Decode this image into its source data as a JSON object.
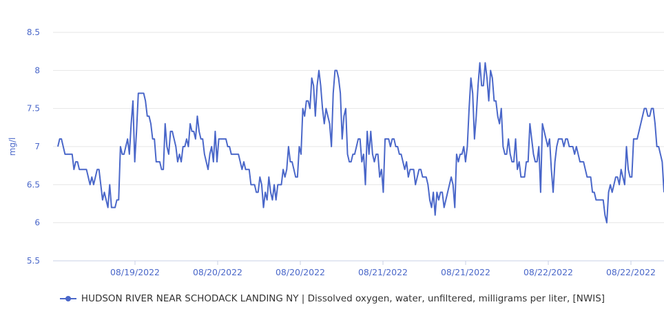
{
  "chart_data": {
    "type": "line",
    "title": "",
    "xlabel": "",
    "ylabel": "mg/l",
    "ylim": [
      5.5,
      8.5
    ],
    "y_ticks": [
      "8.5",
      "8",
      "7.5",
      "7",
      "6.5",
      "6",
      "5.5"
    ],
    "x_tick_labels": [
      "08/19/2022",
      "08/20/2022",
      "08/20/2022",
      "08/21/2022",
      "08/21/2022",
      "08/22/2022",
      "08/22/2022"
    ],
    "grid": true,
    "legend": "bottom",
    "series": [
      {
        "name": "HUDSON RIVER NEAR SCHODACK LANDING NY | Dissolved oxygen, water, unfiltered, milligrams per liter, [NWIS]",
        "color": "#4a67c9",
        "values": [
          7.0,
          7.1,
          7.1,
          7.0,
          6.9,
          6.9,
          6.9,
          6.9,
          6.9,
          6.7,
          6.8,
          6.8,
          6.7,
          6.7,
          6.7,
          6.7,
          6.7,
          6.6,
          6.5,
          6.6,
          6.5,
          6.6,
          6.7,
          6.7,
          6.5,
          6.3,
          6.4,
          6.3,
          6.2,
          6.5,
          6.2,
          6.2,
          6.2,
          6.3,
          6.3,
          7.0,
          6.9,
          6.9,
          7.0,
          7.1,
          6.9,
          7.3,
          7.6,
          6.8,
          7.2,
          7.7,
          7.7,
          7.7,
          7.7,
          7.6,
          7.4,
          7.4,
          7.3,
          7.1,
          7.1,
          6.8,
          6.8,
          6.8,
          6.7,
          6.7,
          7.3,
          7.0,
          6.9,
          7.2,
          7.2,
          7.1,
          7.0,
          6.8,
          6.9,
          6.8,
          7.0,
          7.0,
          7.1,
          7.0,
          7.3,
          7.2,
          7.2,
          7.1,
          7.4,
          7.2,
          7.1,
          7.1,
          6.9,
          6.8,
          6.7,
          6.9,
          7.0,
          6.8,
          7.2,
          6.8,
          7.1,
          7.1,
          7.1,
          7.1,
          7.1,
          7.0,
          7.0,
          6.9,
          6.9,
          6.9,
          6.9,
          6.9,
          6.8,
          6.7,
          6.8,
          6.7,
          6.7,
          6.7,
          6.5,
          6.5,
          6.5,
          6.4,
          6.4,
          6.6,
          6.5,
          6.2,
          6.4,
          6.3,
          6.6,
          6.4,
          6.3,
          6.5,
          6.3,
          6.5,
          6.5,
          6.5,
          6.7,
          6.6,
          6.7,
          7.0,
          6.8,
          6.8,
          6.7,
          6.6,
          6.6,
          7.0,
          6.9,
          7.5,
          7.4,
          7.6,
          7.6,
          7.5,
          7.9,
          7.8,
          7.4,
          7.8,
          8.0,
          7.8,
          7.5,
          7.3,
          7.5,
          7.4,
          7.3,
          7.0,
          7.7,
          8.0,
          8.0,
          7.9,
          7.7,
          7.1,
          7.4,
          7.5,
          6.9,
          6.8,
          6.8,
          6.9,
          6.9,
          7.0,
          7.1,
          7.1,
          6.8,
          6.9,
          6.5,
          7.2,
          6.9,
          7.2,
          6.9,
          6.8,
          6.9,
          6.9,
          6.6,
          6.7,
          6.4,
          7.1,
          7.1,
          7.1,
          7.0,
          7.1,
          7.1,
          7.0,
          7.0,
          6.9,
          6.9,
          6.8,
          6.7,
          6.8,
          6.6,
          6.7,
          6.7,
          6.7,
          6.5,
          6.6,
          6.7,
          6.7,
          6.6,
          6.6,
          6.6,
          6.5,
          6.3,
          6.2,
          6.4,
          6.1,
          6.4,
          6.3,
          6.4,
          6.4,
          6.2,
          6.3,
          6.4,
          6.5,
          6.6,
          6.5,
          6.2,
          6.9,
          6.8,
          6.9,
          6.9,
          7.0,
          6.8,
          7.0,
          7.5,
          7.9,
          7.7,
          7.1,
          7.4,
          7.8,
          8.1,
          7.8,
          7.8,
          8.1,
          7.9,
          7.6,
          8.0,
          7.9,
          7.6,
          7.6,
          7.4,
          7.3,
          7.5,
          7.0,
          6.9,
          6.9,
          7.1,
          6.9,
          6.8,
          6.8,
          7.1,
          6.7,
          6.8,
          6.6,
          6.6,
          6.6,
          6.8,
          6.8,
          7.3,
          7.1,
          6.9,
          6.8,
          6.8,
          7.0,
          6.4,
          7.3,
          7.2,
          7.1,
          7.0,
          7.1,
          6.7,
          6.4,
          6.8,
          7.0,
          7.1,
          7.1,
          7.1,
          7.0,
          7.1,
          7.1,
          7.0,
          7.0,
          7.0,
          6.9,
          7.0,
          6.9,
          6.8,
          6.8,
          6.8,
          6.7,
          6.6,
          6.6,
          6.6,
          6.4,
          6.4,
          6.3,
          6.3,
          6.3,
          6.3,
          6.3,
          6.1,
          6.0,
          6.4,
          6.5,
          6.4,
          6.5,
          6.6,
          6.6,
          6.5,
          6.7,
          6.6,
          6.5,
          7.0,
          6.7,
          6.6,
          6.6,
          7.1,
          7.1,
          7.1,
          7.2,
          7.3,
          7.4,
          7.5,
          7.5,
          7.4,
          7.4,
          7.5,
          7.5,
          7.3,
          7.0,
          7.0,
          6.9,
          6.8,
          6.4
        ]
      }
    ]
  }
}
